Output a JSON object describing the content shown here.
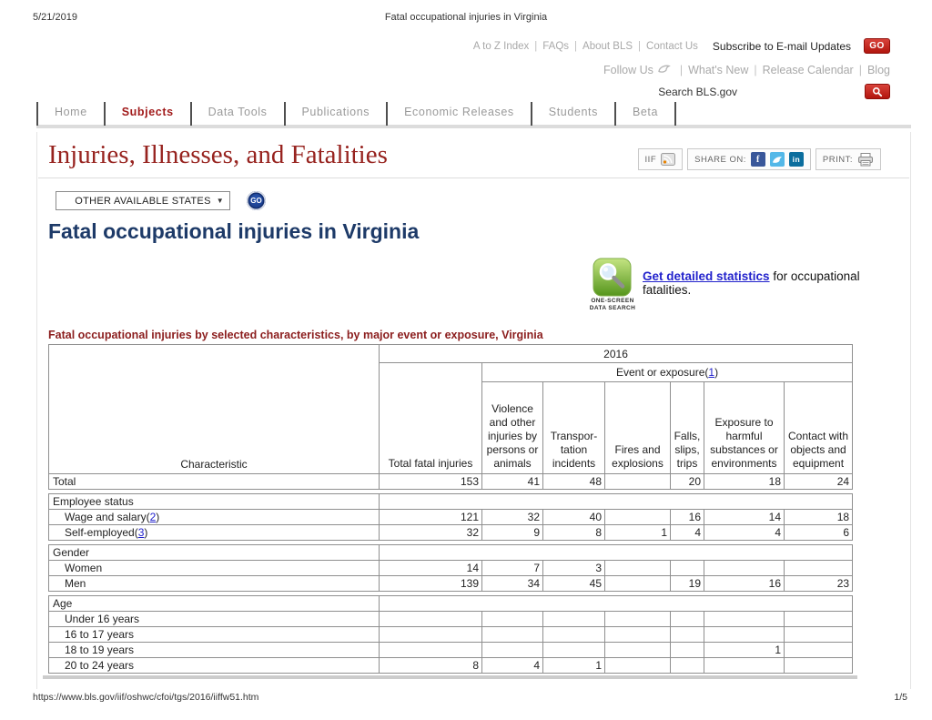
{
  "print_header": {
    "date": "5/21/2019",
    "title": "Fatal occupational injuries in Virginia"
  },
  "print_footer": {
    "url": "https://www.bls.gov/iif/oshwc/cfoi/tgs/2016/iiffw51.htm",
    "page": "1/5"
  },
  "top_bar": {
    "links": [
      "A to Z Index",
      "FAQs",
      "About BLS",
      "Contact Us"
    ],
    "subscribe_label": "Subscribe to E-mail Updates",
    "subscribe_go_label": "GO",
    "follow_us_label": "Follow Us",
    "follow_links": [
      "What's New",
      "Release Calendar",
      "Blog"
    ],
    "search_label": "Search BLS.gov"
  },
  "nav": {
    "tabs": [
      "Home",
      "Subjects",
      "Data Tools",
      "Publications",
      "Economic Releases",
      "Students",
      "Beta"
    ],
    "active_tab": "Subjects"
  },
  "masthead": {
    "title": "Injuries, Illnesses, and Fatalities",
    "iif_label": "IIF",
    "share_label": "SHARE ON:",
    "print_label": "PRINT:",
    "social_icons": [
      "facebook",
      "twitter",
      "linkedin"
    ]
  },
  "state_selector": {
    "value": "OTHER AVAILABLE STATES",
    "go_label": "GO"
  },
  "page_heading": "Fatal occupational injuries in Virginia",
  "promo": {
    "icon_caption_line1": "ONE-SCREEN",
    "icon_caption_line2": "DATA SEARCH",
    "link_label": "Get detailed statistics",
    "rest_text": " for occupational fatalities."
  },
  "table": {
    "caption": "Fatal occupational injuries by selected characteristics, by major event or exposure, Virginia",
    "year_header": "2016",
    "group_header": "Event or exposure",
    "group_note": "1",
    "col_headers": [
      "Characteristic",
      "Total fatal injuries",
      "Violence and other injuries by persons or animals",
      "Transpor-tation incidents",
      "Fires and explosions",
      "Falls, slips, trips",
      "Exposure to harmful substances or environments",
      "Contact with objects and equipment"
    ],
    "rows": [
      {
        "label": "Total",
        "indent": false,
        "values": [
          "153",
          "41",
          "48",
          "",
          "20",
          "18",
          "24"
        ]
      },
      {
        "section": "Employee status"
      },
      {
        "label": "Wage and salary",
        "note": "2",
        "indent": true,
        "values": [
          "121",
          "32",
          "40",
          "",
          "16",
          "14",
          "18"
        ]
      },
      {
        "label": "Self-employed",
        "note": "3",
        "indent": true,
        "values": [
          "32",
          "9",
          "8",
          "1",
          "4",
          "4",
          "6"
        ]
      },
      {
        "section": "Gender"
      },
      {
        "label": "Women",
        "indent": true,
        "values": [
          "14",
          "7",
          "3",
          "",
          "",
          "",
          ""
        ]
      },
      {
        "label": "Men",
        "indent": true,
        "values": [
          "139",
          "34",
          "45",
          "",
          "19",
          "16",
          "23"
        ]
      },
      {
        "section": "Age"
      },
      {
        "label": "Under 16 years",
        "indent": true,
        "values": [
          "",
          "",
          "",
          "",
          "",
          "",
          ""
        ]
      },
      {
        "label": "16 to 17 years",
        "indent": true,
        "values": [
          "",
          "",
          "",
          "",
          "",
          "",
          ""
        ]
      },
      {
        "label": "18 to 19 years",
        "indent": true,
        "values": [
          "",
          "",
          "",
          "",
          "",
          "1",
          ""
        ]
      },
      {
        "label": "20 to 24 years",
        "indent": true,
        "values": [
          "8",
          "4",
          "1",
          "",
          "",
          "",
          ""
        ]
      }
    ]
  },
  "colors": {
    "accent_red": "#b2150e",
    "heading_serif_red": "#97231f",
    "table_caption_red": "#8b1d1d",
    "active_tab_red": "#a11b1b",
    "heading_navy": "#1d3a68",
    "link_blue": "#2222cc",
    "gray_link": "#a9a9a9",
    "table_border": "#8f8f8f",
    "go_circle_navy": "#132f71",
    "promo_icon_green": "#5a9e1f"
  }
}
